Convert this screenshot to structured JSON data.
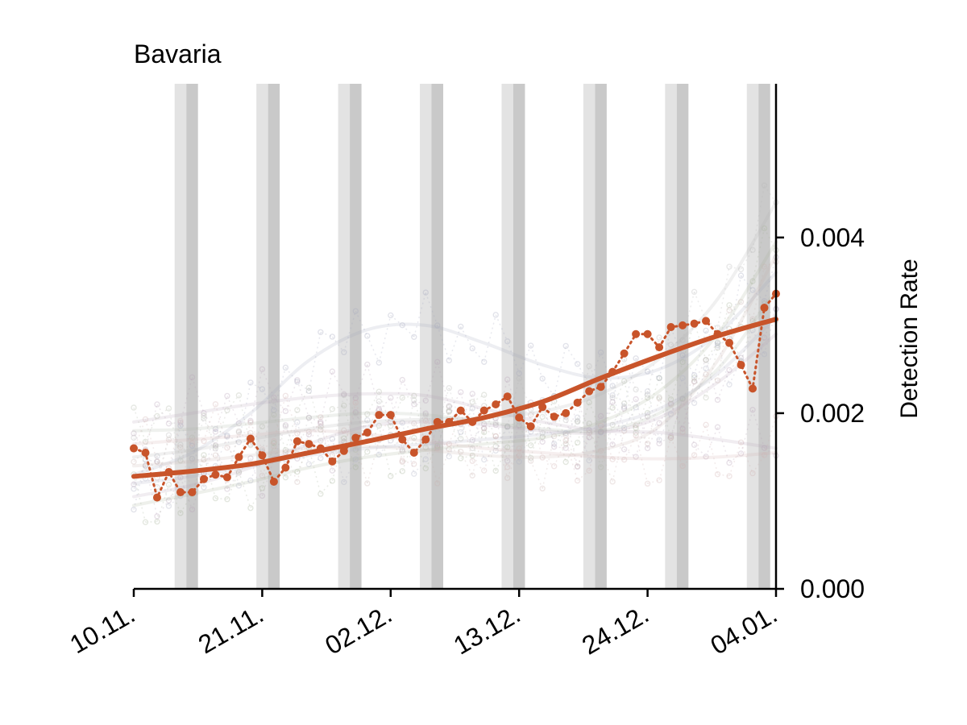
{
  "chart_data": {
    "type": "line",
    "title": "Bavaria",
    "ylabel": "Detection Rate",
    "xlabel": "",
    "x_start": "2020-11-10",
    "x_end": "2021-01-04",
    "xlim": [
      "2020-11-10",
      "2021-01-04"
    ],
    "ylim": [
      0,
      0.00575
    ],
    "y_ticks": [
      0.0,
      0.002,
      0.004
    ],
    "y_tick_labels": [
      "0.000",
      "0.002",
      "0.004"
    ],
    "y_axis_side": "right",
    "x_tick_labels": [
      "10.11.",
      "21.11.",
      "02.12.",
      "13.12.",
      "24.12.",
      "04.01."
    ],
    "x_tick_dates": [
      "2020-11-10",
      "2020-11-21",
      "2020-12-02",
      "2020-12-13",
      "2020-12-24",
      "2021-01-04"
    ],
    "grid": false,
    "legend": "none",
    "weekend_shading": [
      {
        "saturday": "2020-11-14",
        "sunday": "2020-11-15"
      },
      {
        "saturday": "2020-11-21",
        "sunday": "2020-11-22"
      },
      {
        "saturday": "2020-11-28",
        "sunday": "2020-11-29"
      },
      {
        "saturday": "2020-12-05",
        "sunday": "2020-12-06"
      },
      {
        "saturday": "2020-12-12",
        "sunday": "2020-12-13"
      },
      {
        "saturday": "2020-12-19",
        "sunday": "2020-12-20"
      },
      {
        "saturday": "2020-12-26",
        "sunday": "2020-12-27"
      },
      {
        "saturday": "2021-01-02",
        "sunday": "2021-01-03"
      }
    ],
    "series": [
      {
        "color": "#c8542a",
        "style": "dotted-with-markers",
        "x": [
          "2020-11-10",
          "2020-11-11",
          "2020-11-12",
          "2020-11-13",
          "2020-11-14",
          "2020-11-15",
          "2020-11-16",
          "2020-11-17",
          "2020-11-18",
          "2020-11-19",
          "2020-11-20",
          "2020-11-21",
          "2020-11-22",
          "2020-11-23",
          "2020-11-24",
          "2020-11-25",
          "2020-11-26",
          "2020-11-27",
          "2020-11-28",
          "2020-11-29",
          "2020-11-30",
          "2020-12-01",
          "2020-12-02",
          "2020-12-03",
          "2020-12-04",
          "2020-12-05",
          "2020-12-06",
          "2020-12-07",
          "2020-12-08",
          "2020-12-09",
          "2020-12-10",
          "2020-12-11",
          "2020-12-12",
          "2020-12-13",
          "2020-12-14",
          "2020-12-15",
          "2020-12-16",
          "2020-12-17",
          "2020-12-18",
          "2020-12-19",
          "2020-12-20",
          "2020-12-21",
          "2020-12-22",
          "2020-12-23",
          "2020-12-24",
          "2020-12-25",
          "2020-12-26",
          "2020-12-27",
          "2020-12-28",
          "2020-12-29",
          "2020-12-30",
          "2020-12-31",
          "2021-01-01",
          "2021-01-02",
          "2021-01-03",
          "2021-01-04"
        ],
        "values": [
          0.0016,
          0.00155,
          0.00104,
          0.00133,
          0.0011,
          0.0011,
          0.00125,
          0.0013,
          0.00127,
          0.0015,
          0.00171,
          0.00152,
          0.00122,
          0.00138,
          0.00168,
          0.00165,
          0.0016,
          0.00145,
          0.00157,
          0.00172,
          0.00178,
          0.00198,
          0.00198,
          0.0017,
          0.00155,
          0.0017,
          0.0019,
          0.0019,
          0.00203,
          0.0019,
          0.00203,
          0.0021,
          0.00219,
          0.00195,
          0.00185,
          0.00207,
          0.00196,
          0.002,
          0.00212,
          0.00225,
          0.0023,
          0.00247,
          0.00268,
          0.0029,
          0.0029,
          0.00275,
          0.00298,
          0.003,
          0.00302,
          0.00305,
          0.0029,
          0.0028,
          0.00255,
          0.00228,
          0.0032,
          0.00336
        ]
      },
      {
        "color": "#c8542a",
        "style": "solid-smooth",
        "x": [
          "2020-11-10",
          "2020-11-15",
          "2020-11-20",
          "2020-11-25",
          "2020-11-30",
          "2020-12-05",
          "2020-12-10",
          "2020-12-15",
          "2020-12-20",
          "2020-12-25",
          "2020-12-30",
          "2021-01-04"
        ],
        "values": [
          0.00128,
          0.00134,
          0.00142,
          0.00155,
          0.00168,
          0.00182,
          0.00195,
          0.00213,
          0.0024,
          0.00265,
          0.00288,
          0.00307
        ]
      }
    ],
    "background_series": [
      {
        "color": "#b9a3b8",
        "style": "faded",
        "values": [
          0.00105,
          0.00118,
          0.00138,
          0.00165,
          0.00185,
          0.0019,
          0.00187,
          0.0018,
          0.00178,
          0.00195,
          0.00235,
          0.0029
        ]
      },
      {
        "color": "#a9b59a",
        "style": "faded",
        "values": [
          0.00095,
          0.00108,
          0.00122,
          0.00138,
          0.0015,
          0.00158,
          0.00165,
          0.00172,
          0.0019,
          0.00225,
          0.0029,
          0.00395
        ]
      },
      {
        "color": "#b9a3b8",
        "style": "faded",
        "values": [
          0.0019,
          0.002,
          0.0021,
          0.00218,
          0.00222,
          0.0022,
          0.00205,
          0.0019,
          0.0018,
          0.00178,
          0.0017,
          0.0016
        ]
      },
      {
        "color": "#a4a8bf",
        "style": "faded",
        "values": [
          0.0013,
          0.00155,
          0.002,
          0.0026,
          0.00295,
          0.003,
          0.0028,
          0.00255,
          0.0024,
          0.0025,
          0.0029,
          0.0036
        ]
      },
      {
        "color": "#c9b4b0",
        "style": "faded",
        "values": [
          0.0014,
          0.00145,
          0.00152,
          0.0016,
          0.00162,
          0.00158,
          0.00152,
          0.0015,
          0.00158,
          0.00185,
          0.0026,
          0.0038
        ]
      },
      {
        "color": "#b0b8a8",
        "style": "faded",
        "values": [
          0.0018,
          0.00182,
          0.00188,
          0.00195,
          0.002,
          0.00198,
          0.0019,
          0.00182,
          0.0018,
          0.002,
          0.0025,
          0.0034
        ]
      },
      {
        "color": "#aeb0c4",
        "style": "faded",
        "values": [
          0.0012,
          0.00128,
          0.0014,
          0.00152,
          0.0016,
          0.00165,
          0.0017,
          0.00176,
          0.00185,
          0.00205,
          0.00245,
          0.0031
        ]
      },
      {
        "color": "#d0b0b0",
        "style": "faded",
        "values": [
          0.00165,
          0.0017,
          0.00175,
          0.0018,
          0.00176,
          0.00168,
          0.0016,
          0.00155,
          0.0015,
          0.00148,
          0.0015,
          0.00155
        ]
      },
      {
        "color": "#b6b6b6",
        "style": "faded",
        "values": [
          0.0015,
          0.00158,
          0.0017,
          0.00182,
          0.0019,
          0.00193,
          0.00195,
          0.00202,
          0.00222,
          0.00262,
          0.0033,
          0.0044
        ]
      }
    ]
  }
}
